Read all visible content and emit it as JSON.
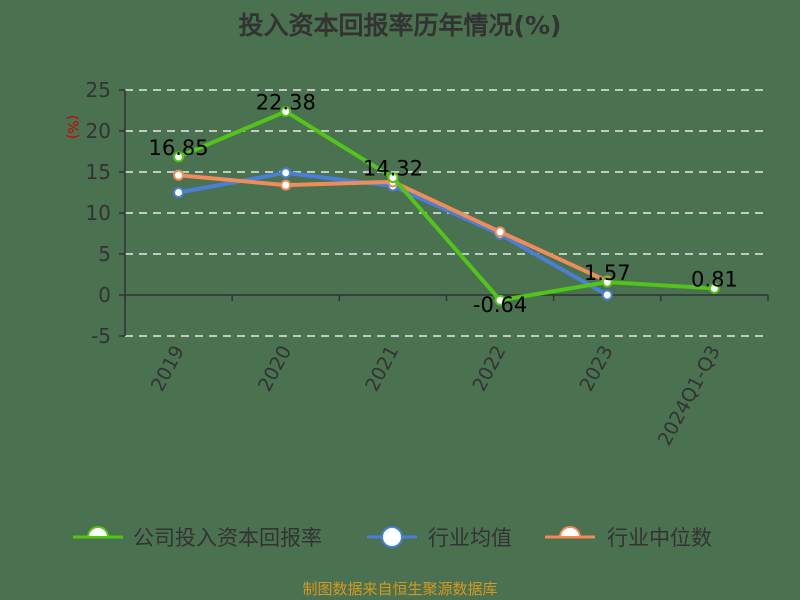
{
  "title": "投入资本回报率历年情况(%)",
  "source_note": "制图数据来自恒生聚源数据库",
  "chart_data": {
    "type": "line",
    "title": "投入资本回报率历年情况(%)",
    "xlabel": "",
    "ylabel": "(%)",
    "categories": [
      "2019",
      "2020",
      "2021",
      "2022",
      "2023",
      "2024Q1-Q3"
    ],
    "ylim": [
      -5,
      25
    ],
    "yticks": [
      -5,
      0,
      5,
      10,
      15,
      20,
      25
    ],
    "grid": true,
    "legend_position": "bottom",
    "series": [
      {
        "name": "公司投入资本回报率",
        "color": "#52c41a",
        "values": [
          16.85,
          22.38,
          14.32,
          -0.64,
          1.57,
          0.81
        ],
        "labels_shown": true
      },
      {
        "name": "行业均值",
        "color": "#4a7fd6",
        "values": [
          12.5,
          14.9,
          13.3,
          7.4,
          0.0,
          null
        ],
        "labels_shown": false
      },
      {
        "name": "行业中位数",
        "color": "#ee8c5a",
        "values": [
          14.6,
          13.4,
          13.8,
          7.7,
          1.7,
          null
        ],
        "labels_shown": false
      }
    ]
  },
  "style": {
    "axis_color": "#333333",
    "grid_color": "#e8e8e8",
    "tick_label_color": "#333333",
    "ylabel_color": "#cc0000",
    "data_label_color": "#000000"
  }
}
